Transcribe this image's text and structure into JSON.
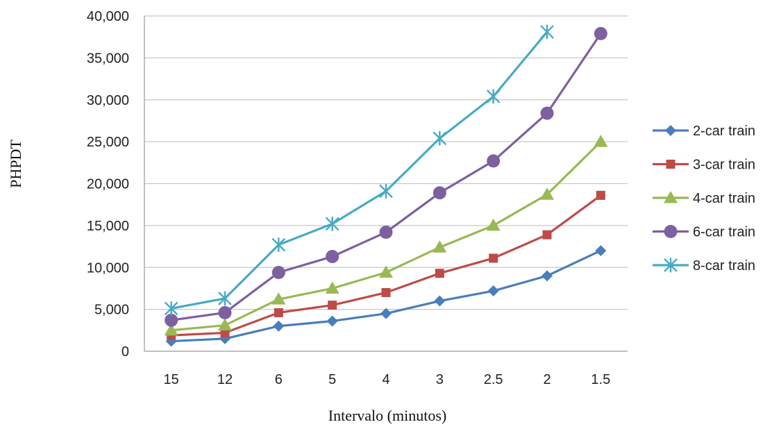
{
  "chart_data": {
    "type": "line",
    "categories": [
      "15",
      "12",
      "6",
      "5",
      "4",
      "3",
      "2.5",
      "2",
      "1.5"
    ],
    "xlabel": "Intervalo (minutos)",
    "ylabel": "PHPDT",
    "ylim": [
      0,
      40000
    ],
    "yticks": [
      "0",
      "5,000",
      "10,000",
      "15,000",
      "20,000",
      "25,000",
      "30,000",
      "35,000",
      "40,000"
    ],
    "ytick_values": [
      0,
      5000,
      10000,
      15000,
      20000,
      25000,
      30000,
      35000,
      40000
    ],
    "grid": "horizontal",
    "legend_position": "right",
    "series": [
      {
        "name": "2-car train",
        "color": "#4a7ebb",
        "marker": "diamond",
        "values": [
          1200,
          1500,
          3000,
          3600,
          4500,
          6000,
          7200,
          9000,
          12000
        ]
      },
      {
        "name": "3-car train",
        "color": "#be4b48",
        "marker": "square",
        "values": [
          1900,
          2200,
          4600,
          5500,
          7000,
          9300,
          11100,
          13900,
          18600
        ]
      },
      {
        "name": "4-car train",
        "color": "#98b954",
        "marker": "triangle",
        "values": [
          2500,
          3100,
          6200,
          7500,
          9400,
          12400,
          15000,
          18700,
          25000
        ]
      },
      {
        "name": "6-car train",
        "color": "#7d60a0",
        "marker": "circle",
        "values": [
          3700,
          4600,
          9400,
          11300,
          14200,
          18900,
          22700,
          28400,
          37900
        ]
      },
      {
        "name": "8-car train",
        "color": "#46aac5",
        "marker": "star",
        "values": [
          5100,
          6300,
          12700,
          15200,
          19100,
          25400,
          30400,
          38100,
          null
        ]
      }
    ]
  }
}
